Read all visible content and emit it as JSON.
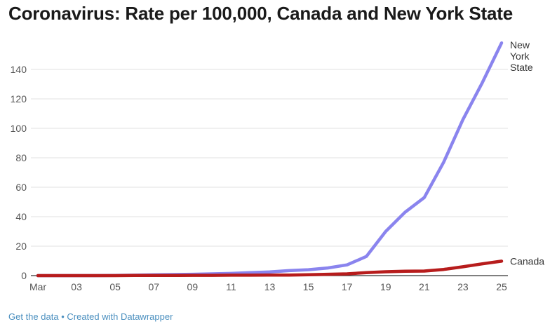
{
  "title": "Coronavirus: Rate per 100,000, Canada and New York State",
  "footer": {
    "get_data": "Get the data",
    "separator": "•",
    "created_with": "Created with Datawrapper"
  },
  "colors": {
    "new_york": "#8a84ee",
    "canada": "#b71c1c",
    "grid": "#e0e0e0",
    "axis": "#333333",
    "tick_text": "#555555",
    "label_text": "#333333",
    "link": "#4a8fbf"
  },
  "chart_data": {
    "type": "line",
    "title": "Coronavirus: Rate per 100,000, Canada and New York State",
    "xlabel": "",
    "ylabel": "",
    "x": [
      1,
      2,
      3,
      4,
      5,
      6,
      7,
      8,
      9,
      10,
      11,
      12,
      13,
      14,
      15,
      16,
      17,
      18,
      19,
      20,
      21,
      22,
      23,
      24,
      25
    ],
    "x_tick_values": [
      1,
      3,
      5,
      7,
      9,
      11,
      13,
      15,
      17,
      19,
      21,
      23,
      25
    ],
    "x_tick_labels": [
      "Mar",
      "03",
      "05",
      "07",
      "09",
      "11",
      "13",
      "15",
      "17",
      "19",
      "21",
      "23",
      "25"
    ],
    "xlim": [
      1,
      25
    ],
    "ylim": [
      0,
      160
    ],
    "y_ticks": [
      0,
      20,
      40,
      60,
      80,
      100,
      120,
      140
    ],
    "grid": true,
    "legend": "inline labels at line ends",
    "series": [
      {
        "name": "New York State",
        "label_lines": [
          "New",
          "York",
          "State"
        ],
        "color": "#8a84ee",
        "values": [
          0,
          0,
          0,
          0,
          0.1,
          0.3,
          0.5,
          0.7,
          0.9,
          1.2,
          1.5,
          2.0,
          2.5,
          3.4,
          4.0,
          5.2,
          7.3,
          13,
          30,
          43,
          53,
          77,
          106,
          131,
          158
        ]
      },
      {
        "name": "Canada",
        "label_lines": [
          "Canada"
        ],
        "color": "#b71c1c",
        "values": [
          0,
          0,
          0,
          0,
          0,
          0.1,
          0.1,
          0.1,
          0.2,
          0.2,
          0.3,
          0.3,
          0.4,
          0.4,
          0.6,
          0.9,
          1.2,
          2.0,
          2.6,
          3.0,
          3.1,
          4.2,
          6.0,
          8.0,
          9.8
        ]
      }
    ]
  }
}
